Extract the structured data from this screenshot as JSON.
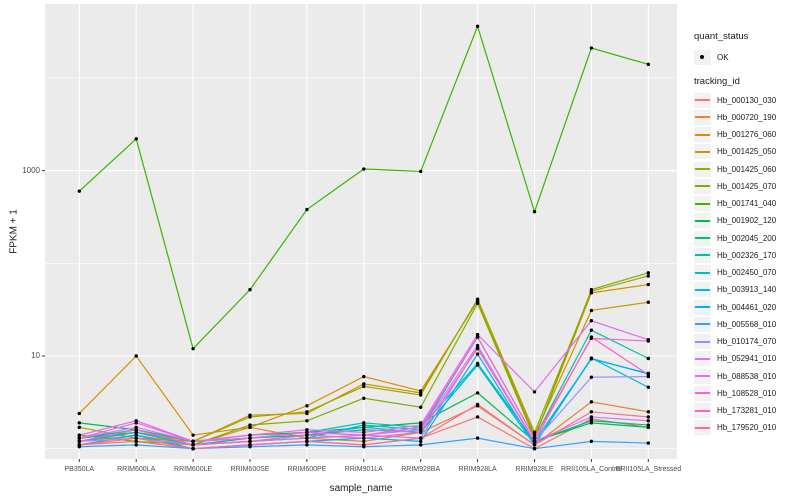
{
  "figure": {
    "background": "#FFFFFF",
    "panel_background": "#EBEBEB",
    "grid_color": "#FFFFFF",
    "tick_color": "#333333",
    "axis_text_color": "#4D4D4D",
    "point_color": "#000000"
  },
  "axes": {
    "x_title": "sample_name",
    "y_title": "FPKM + 1",
    "y_tick_labels": [
      "1000",
      "10"
    ],
    "y_tick_values": [
      1000,
      10
    ],
    "y_minor_values": [
      1,
      100,
      10000
    ]
  },
  "legend": {
    "quant_status_title": "quant_status",
    "quant_status_items": [
      {
        "label": "OK",
        "symbol": "point"
      }
    ],
    "tracking_id_title": "tracking_id"
  },
  "chart_data": {
    "type": "line",
    "title": "",
    "xlabel": "sample_name",
    "ylabel": "FPKM + 1",
    "y_scale": "log10",
    "ylim": [
      0.8,
      55000
    ],
    "grid": true,
    "legend_position": "right",
    "point_marker": "black dot on every vertex (quant_status = OK)",
    "categories": [
      "PB350LA",
      "RRIM600LA",
      "RRIM600LE",
      "RRIM600SE",
      "RRIM600PE",
      "RRIM901LA",
      "RRIM928BA",
      "RRIM928LA",
      "RRIM928LE",
      "RRII105LA_Control",
      "RRII105LA_Stressed"
    ],
    "series": [
      {
        "name": "Hb_000130_030",
        "color": "#F8766D",
        "values": [
          1.1,
          1.2,
          1.0,
          1.1,
          1.2,
          1.1,
          1.3,
          2.2,
          1.0,
          2.1,
          1.7
        ]
      },
      {
        "name": "Hb_000720_190",
        "color": "#EA8331",
        "values": [
          1.2,
          1.4,
          1.1,
          1.7,
          1.3,
          1.2,
          1.5,
          2.9,
          1.1,
          3.2,
          2.5
        ]
      },
      {
        "name": "Hb_001276_060",
        "color": "#D89000",
        "values": [
          2.4,
          10,
          1.4,
          1.7,
          2.9,
          6.0,
          4.2,
          39,
          1.3,
          48,
          59
        ]
      },
      {
        "name": "Hb_001425_050",
        "color": "#C09B00",
        "values": [
          1.3,
          1.5,
          1.2,
          2.3,
          2.4,
          5.0,
          4.0,
          40,
          1.4,
          31,
          38
        ]
      },
      {
        "name": "Hb_001425_060",
        "color": "#A3A500",
        "values": [
          1.7,
          1.3,
          1.2,
          2.2,
          2.5,
          4.7,
          3.8,
          41,
          1.5,
          50,
          73
        ]
      },
      {
        "name": "Hb_001425_070",
        "color": "#7CAE00",
        "values": [
          1.4,
          1.2,
          1.1,
          1.8,
          2.0,
          3.5,
          2.8,
          37,
          1.3,
          52,
          79
        ]
      },
      {
        "name": "Hb_001741_040",
        "color": "#39B600",
        "values": [
          600,
          2200,
          12,
          52,
          380,
          1040,
          980,
          36000,
          360,
          21000,
          14000
        ]
      },
      {
        "name": "Hb_001902_120",
        "color": "#00BB4E",
        "values": [
          1.9,
          1.6,
          1.2,
          1.4,
          1.5,
          1.7,
          1.9,
          4.0,
          1.2,
          1.9,
          1.7
        ]
      },
      {
        "name": "Hb_002045_200",
        "color": "#00BF7D",
        "values": [
          1.3,
          1.5,
          1.1,
          1.3,
          1.4,
          1.6,
          1.5,
          8.0,
          1.2,
          2.0,
          1.8
        ]
      },
      {
        "name": "Hb_002326_170",
        "color": "#00C1A3",
        "values": [
          1.2,
          1.5,
          1.1,
          1.2,
          1.3,
          1.8,
          1.6,
          16,
          1.3,
          19,
          9.4
        ]
      },
      {
        "name": "Hb_002450_070",
        "color": "#00BFC4",
        "values": [
          1.3,
          1.6,
          1.2,
          1.3,
          1.5,
          1.9,
          1.7,
          8.3,
          1.2,
          9.3,
          6.5
        ]
      },
      {
        "name": "Hb_003913_140",
        "color": "#00BAE0",
        "values": [
          1.2,
          1.5,
          1.1,
          1.2,
          1.4,
          1.7,
          1.5,
          8.0,
          1.1,
          9.5,
          4.6
        ]
      },
      {
        "name": "Hb_004461_020",
        "color": "#00B0F6",
        "values": [
          1.1,
          1.4,
          1.0,
          1.1,
          1.2,
          1.3,
          1.2,
          10.5,
          1.1,
          9.4,
          6.4
        ]
      },
      {
        "name": "Hb_005568_010",
        "color": "#35A2FF",
        "values": [
          1.05,
          1.1,
          1.0,
          1.05,
          1.1,
          1.05,
          1.1,
          1.3,
          1.0,
          1.2,
          1.15
        ]
      },
      {
        "name": "Hb_010174_070",
        "color": "#9590FF",
        "values": [
          1.2,
          1.3,
          1.1,
          1.2,
          1.3,
          1.4,
          1.3,
          12.5,
          1.2,
          5.9,
          6.0
        ]
      },
      {
        "name": "Hb_052941_010",
        "color": "#C77CFF",
        "values": [
          1.3,
          1.7,
          1.2,
          1.3,
          1.5,
          1.4,
          1.6,
          13,
          1.2,
          2.2,
          2.0
        ]
      },
      {
        "name": "Hb_088538_010",
        "color": "#E76BF3",
        "values": [
          1.4,
          2.0,
          1.2,
          1.4,
          1.6,
          1.5,
          1.8,
          17,
          4.1,
          24,
          15
        ]
      },
      {
        "name": "Hb_108528_010",
        "color": "#FA62DB",
        "values": [
          1.3,
          1.9,
          1.2,
          1.3,
          1.5,
          1.4,
          1.7,
          16,
          1.3,
          15.5,
          14.5
        ]
      },
      {
        "name": "Hb_173281_010",
        "color": "#FF62BC",
        "values": [
          1.2,
          1.6,
          1.1,
          1.2,
          1.4,
          1.3,
          1.5,
          12,
          1.2,
          16,
          6.3
        ]
      },
      {
        "name": "Hb_179520_010",
        "color": "#FF6A98",
        "values": [
          1.1,
          1.3,
          1.0,
          1.1,
          1.2,
          1.1,
          1.3,
          3.0,
          1.1,
          2.5,
          2.2
        ]
      }
    ]
  }
}
